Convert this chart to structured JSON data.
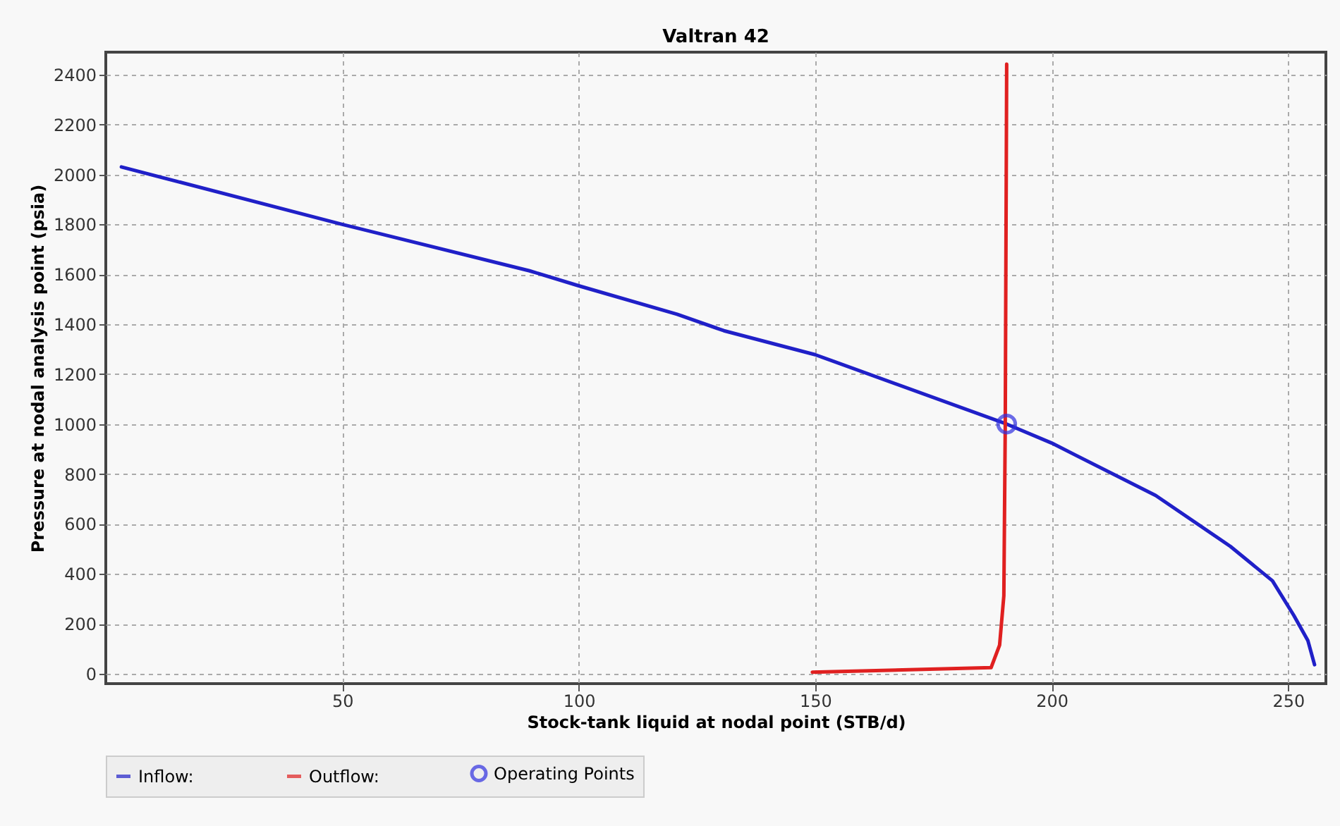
{
  "chart_data": {
    "type": "line",
    "title": "Valtran 42",
    "xlabel": "Stock-tank liquid at nodal point (STB/d)",
    "ylabel": "Pressure at nodal analysis point (psia)",
    "xlim": [
      0,
      258
    ],
    "ylim": [
      -40,
      2490
    ],
    "xticks": [
      50,
      100,
      150,
      200,
      250
    ],
    "yticks": [
      0,
      200,
      400,
      600,
      800,
      1000,
      1200,
      1400,
      1600,
      1800,
      2000,
      2200,
      2400
    ],
    "grid": true,
    "legend": "bottom",
    "series": [
      {
        "name": "Inflow:",
        "color": "#2020c8",
        "x": [
          3.3,
          50,
          89.6,
          100,
          120.8,
          130.7,
          150,
          190.5,
          200,
          222,
          237.8,
          246.7,
          251.2,
          254.2,
          255.6
        ],
        "values": [
          2030,
          1800,
          1614,
          1554,
          1440,
          1374,
          1278,
          1000,
          924,
          714,
          510,
          372,
          234,
          132,
          36
        ]
      },
      {
        "name": "Outflow:",
        "color": "#e02020",
        "x": [
          149.4,
          187.2,
          189,
          189.9,
          190.2,
          190.5
        ],
        "values": [
          6,
          24,
          114,
          312,
          1000,
          2442
        ]
      },
      {
        "name": "Operating Points",
        "color": "#3030e0",
        "type": "scatter",
        "marker": "circle",
        "x": [
          190.5
        ],
        "values": [
          1000
        ]
      }
    ]
  }
}
